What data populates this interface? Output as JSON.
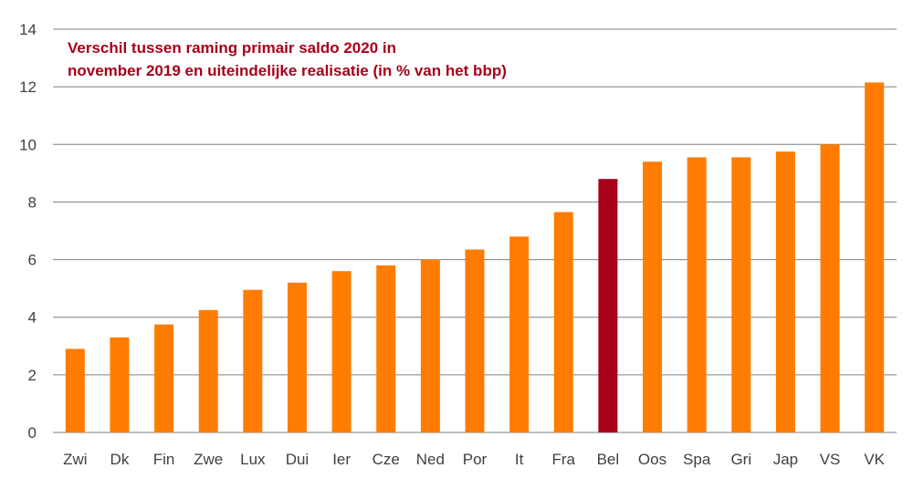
{
  "chart_data": {
    "type": "bar",
    "title_lines": [
      "Verschil tussen raming primair saldo 2020 in",
      "november 2019 en uiteindelijke realisatie (in % van het bbp)"
    ],
    "xlabel": "",
    "ylabel": "",
    "ylim": [
      0,
      14
    ],
    "y_ticks": [
      0,
      2,
      4,
      6,
      8,
      10,
      12,
      14
    ],
    "grid": true,
    "legend": "none",
    "categories": [
      "Zwi",
      "Dk",
      "Fin",
      "Zwe",
      "Lux",
      "Dui",
      "Ier",
      "Cze",
      "Ned",
      "Por",
      "It",
      "Fra",
      "Bel",
      "Oos",
      "Spa",
      "Gri",
      "Jap",
      "VS",
      "VK"
    ],
    "values": [
      2.9,
      3.3,
      3.75,
      4.25,
      4.95,
      5.2,
      5.6,
      5.8,
      6.0,
      6.35,
      6.8,
      7.65,
      8.8,
      9.4,
      9.55,
      9.55,
      9.75,
      10.0,
      12.15
    ],
    "highlight_category": "Bel"
  },
  "colors": {
    "bar": "#ff7c00",
    "highlight": "#a8001a",
    "title": "#a8001a",
    "grid": "#7f7f7f",
    "axis_text": "#404040"
  }
}
